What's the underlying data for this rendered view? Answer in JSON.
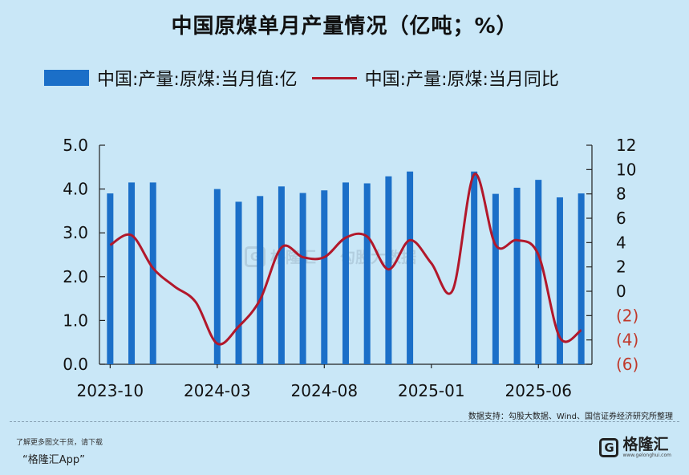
{
  "title": "中国原煤单月产量情况（亿吨；%）",
  "legend": {
    "bar_label": "中国:产量:原煤:当月值:亿",
    "line_label": "中国:产量:原煤:当月同比"
  },
  "source": "数据支持：勾股大数据、Wind、国信证券经济研究所整理",
  "footer": {
    "note": "了解更多图文干货，请下载",
    "app": "“格隆汇App”"
  },
  "brand": {
    "name": "格隆汇",
    "url": "www.gelonghui.com",
    "logo_glyph": "G"
  },
  "watermark": {
    "text_left": "格隆汇",
    "text_right": "勾股大数据",
    "logo_glyph": "G"
  },
  "colors": {
    "bar": "#1b6fc8",
    "line": "#b2182b",
    "neg_tick": "#c0392b",
    "background": "#c9e7f7"
  },
  "chart_data": {
    "type": "bar",
    "categories": [
      "2023-10",
      "2023-11",
      "2023-12",
      "2024-01",
      "2024-02",
      "2024-03",
      "2024-04",
      "2024-05",
      "2024-06",
      "2024-07",
      "2024-08",
      "2024-09",
      "2024-10",
      "2024-11",
      "2024-12",
      "2025-01",
      "2025-02",
      "2025-03",
      "2025-04",
      "2025-05",
      "2025-06",
      "2025-07",
      "2025-08"
    ],
    "x_tick_labels": [
      "2023-10",
      "2024-03",
      "2024-08",
      "2025-01",
      "2025-06"
    ],
    "series": [
      {
        "name": "中国:产量:原煤:当月值:亿",
        "type": "bar",
        "axis": "left",
        "values": [
          3.9,
          4.15,
          4.15,
          null,
          null,
          4.0,
          3.71,
          3.84,
          4.06,
          3.91,
          3.97,
          4.15,
          4.13,
          4.29,
          4.4,
          null,
          null,
          4.4,
          3.89,
          4.03,
          4.21,
          3.81,
          3.9
        ]
      },
      {
        "name": "中国:产量:原煤:当月同比",
        "type": "line",
        "axis": "right",
        "values": [
          3.8,
          4.6,
          1.9,
          0.4,
          -0.9,
          -4.3,
          -2.9,
          -0.7,
          3.6,
          2.8,
          2.8,
          4.4,
          4.5,
          1.8,
          4.2,
          2.3,
          0.1,
          9.6,
          3.8,
          4.2,
          3.0,
          -3.8,
          -3.2
        ]
      }
    ],
    "y_left": {
      "ylim": [
        0,
        5
      ],
      "ticks": [
        "0.0",
        "1.0",
        "2.0",
        "3.0",
        "4.0",
        "5.0"
      ]
    },
    "y_right": {
      "ylim": [
        -6,
        12
      ],
      "ticks": [
        {
          "v": 12,
          "label": "12"
        },
        {
          "v": 10,
          "label": "10"
        },
        {
          "v": 8,
          "label": "8"
        },
        {
          "v": 6,
          "label": "6"
        },
        {
          "v": 4,
          "label": "4"
        },
        {
          "v": 2,
          "label": "2"
        },
        {
          "v": 0,
          "label": "0"
        },
        {
          "v": -2,
          "label": "(2)"
        },
        {
          "v": -4,
          "label": "(4)"
        },
        {
          "v": -6,
          "label": "(6)"
        }
      ]
    },
    "grid": false,
    "legend_position": "top"
  }
}
